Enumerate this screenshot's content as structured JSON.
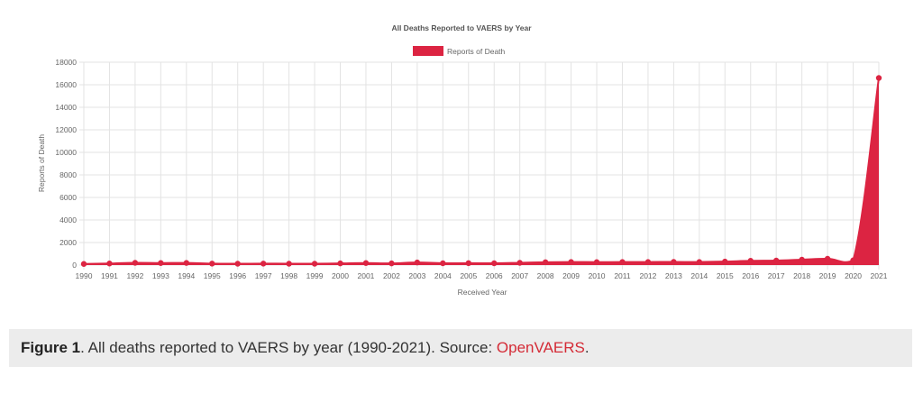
{
  "chart_data": {
    "type": "area",
    "title": "All Deaths Reported to VAERS by Year",
    "xlabel": "Received Year",
    "ylabel": "Reports of Death",
    "ylim": [
      0,
      18000
    ],
    "yticks": [
      0,
      2000,
      4000,
      6000,
      8000,
      10000,
      12000,
      14000,
      16000,
      18000
    ],
    "grid": true,
    "legend_position": "top-center",
    "categories": [
      "1990",
      "1991",
      "1992",
      "1993",
      "1994",
      "1995",
      "1996",
      "1997",
      "1998",
      "1999",
      "2000",
      "2001",
      "2002",
      "2003",
      "2004",
      "2005",
      "2006",
      "2007",
      "2008",
      "2009",
      "2010",
      "2011",
      "2012",
      "2013",
      "2014",
      "2015",
      "2016",
      "2017",
      "2018",
      "2019",
      "2020",
      "2021"
    ],
    "series": [
      {
        "name": "Reports of Death",
        "color": "#dc2442",
        "values": [
          100,
          140,
          200,
          180,
          190,
          130,
          120,
          130,
          120,
          120,
          150,
          180,
          150,
          230,
          160,
          170,
          160,
          200,
          250,
          270,
          260,
          270,
          270,
          280,
          270,
          310,
          380,
          400,
          480,
          560,
          420,
          16600
        ]
      }
    ]
  },
  "caption": {
    "label": "Figure 1",
    "text": ". All deaths reported to VAERS by year (1990-2021). Source: ",
    "link": "OpenVAERS",
    "end": "."
  }
}
